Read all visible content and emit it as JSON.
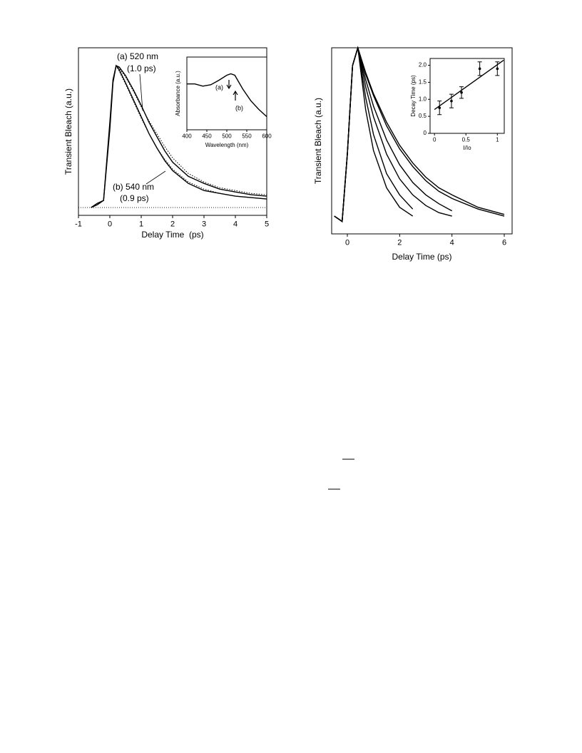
{
  "chart_data": [
    {
      "type": "line",
      "xlabel": "Delay Time  (ps)",
      "ylabel": "Transient Bleach (a.u.)",
      "annotations": [
        "(a) 520 nm",
        "(1.0 ps)",
        "(b) 540 nm",
        "(0.9 ps)"
      ],
      "x": [
        -0.6,
        -0.4,
        -0.2,
        0,
        0.1,
        0.2,
        0.3,
        0.5,
        0.75,
        1,
        1.25,
        1.5,
        1.75,
        2,
        2.5,
        3,
        3.5,
        4,
        4.5,
        5
      ],
      "series": [
        {
          "color": "#000000",
          "style": "solid",
          "values": [
            0,
            0.02,
            0.05,
            0.6,
            0.9,
            1.0,
            0.99,
            0.93,
            0.83,
            0.72,
            0.6,
            0.5,
            0.4,
            0.32,
            0.22,
            0.17,
            0.13,
            0.11,
            0.09,
            0.08
          ]
        },
        {
          "color": "#000000",
          "style": "solid",
          "values": [
            0,
            0.03,
            0.05,
            0.55,
            0.88,
            1.0,
            0.97,
            0.88,
            0.76,
            0.64,
            0.52,
            0.42,
            0.33,
            0.26,
            0.17,
            0.12,
            0.1,
            0.08,
            0.07,
            0.06
          ]
        },
        {
          "color": "#000000",
          "style": "dotted",
          "values": [
            null,
            null,
            null,
            null,
            null,
            1.0,
            0.98,
            0.92,
            0.82,
            0.71,
            0.61,
            0.52,
            0.43,
            0.35,
            0.24,
            0.18,
            0.14,
            0.12,
            0.1,
            0.09
          ]
        },
        {
          "color": "#000000",
          "style": "dotted",
          "values": [
            null,
            null,
            null,
            null,
            null,
            1.0,
            0.96,
            0.87,
            0.75,
            0.63,
            0.52,
            0.42,
            0.34,
            0.27,
            0.18,
            0.13,
            0.1,
            0.08,
            0.07,
            0.06
          ]
        }
      ],
      "xlim": [
        -1,
        5
      ],
      "xticks": [
        -1,
        0,
        1,
        2,
        3,
        4,
        5
      ],
      "ylim": [
        -0.055,
        1.126
      ],
      "zero_line": true
    },
    {
      "type": "line",
      "xlabel": "Wavelength (nm)",
      "ylabel": "Absorbance (a.u.)",
      "annotations": [
        "(a)",
        "(b)"
      ],
      "x": [
        400,
        420,
        440,
        460,
        480,
        500,
        510,
        520,
        540,
        560,
        580,
        600
      ],
      "series": [
        {
          "color": "#000000",
          "style": "solid",
          "values": [
            0.63,
            0.63,
            0.6,
            0.62,
            0.68,
            0.75,
            0.77,
            0.75,
            0.56,
            0.4,
            0.28,
            0.18
          ]
        }
      ],
      "xlim": [
        400,
        600
      ],
      "xticks": [
        400,
        450,
        500,
        550,
        600
      ],
      "ylim": [
        0,
        1
      ]
    },
    {
      "type": "line",
      "xlabel": "Delay Time (ps)",
      "ylabel": "Transient Bleach (a.u.)",
      "x": [
        -0.5,
        -0.2,
        0,
        0.2,
        0.4,
        0.7,
        1,
        1.5,
        2,
        2.5,
        3,
        3.5,
        4,
        5,
        6
      ],
      "series": [
        {
          "color": "#000000",
          "style": "solid",
          "values": [
            0.05,
            0.02,
            0.4,
            0.9,
            1,
            0.65,
            0.42,
            0.21,
            0.1,
            0.05,
            null,
            null,
            null,
            null,
            null
          ]
        },
        {
          "color": "#000000",
          "style": "solid",
          "values": [
            0.05,
            0.02,
            0.4,
            0.9,
            1,
            0.72,
            0.51,
            0.29,
            0.17,
            0.09,
            null,
            null,
            null,
            null,
            null
          ]
        },
        {
          "color": "#000000",
          "style": "solid",
          "values": [
            0.05,
            0.02,
            0.4,
            0.9,
            1,
            0.78,
            0.61,
            0.4,
            0.26,
            0.17,
            0.11,
            0.07,
            0.05,
            null,
            null
          ]
        },
        {
          "color": "#000000",
          "style": "solid",
          "values": [
            0.05,
            0.02,
            0.4,
            0.9,
            1,
            0.82,
            0.67,
            0.48,
            0.34,
            0.24,
            0.17,
            0.12,
            0.08,
            null,
            null
          ]
        },
        {
          "color": "#000000",
          "style": "solid",
          "values": [
            0.05,
            0.02,
            0.4,
            0.9,
            1,
            0.85,
            0.73,
            0.56,
            0.43,
            0.33,
            0.25,
            0.19,
            0.15,
            0.09,
            0.05
          ]
        },
        {
          "color": "#000000",
          "style": "solid",
          "values": [
            0.05,
            0.02,
            0.4,
            0.9,
            1,
            0.86,
            0.74,
            0.58,
            0.45,
            0.35,
            0.27,
            0.21,
            0.17,
            0.1,
            0.06
          ]
        }
      ],
      "xlim": [
        -0.6,
        6.3
      ],
      "xticks": [
        0,
        2,
        4,
        6
      ],
      "ylim": [
        -0.05,
        1.0
      ]
    },
    {
      "type": "scatter",
      "xlabel": "I/Io",
      "ylabel": "Decay Time (ps)",
      "x": [
        0.08,
        0.27,
        0.43,
        0.72,
        1.0
      ],
      "values": [
        0.75,
        0.95,
        1.2,
        1.9,
        1.9
      ],
      "errors": [
        0.2,
        0.2,
        0.17,
        0.2,
        0.2
      ],
      "fit": {
        "x": [
          0,
          1.1
        ],
        "values": [
          0.7,
          2.15
        ]
      },
      "color": "#000000",
      "xlim": [
        -0.07,
        1.11
      ],
      "xticks": [
        0,
        0.5,
        1
      ],
      "ylim": [
        0,
        2.2
      ],
      "yticks": [
        0,
        {
          "value": 0.5,
          "label": "0.5"
        },
        {
          "value": 1.0,
          "label": "1.0"
        },
        {
          "value": 1.5,
          "label": "1.5"
        },
        {
          "value": 2.0,
          "label": "2.0"
        }
      ]
    }
  ]
}
